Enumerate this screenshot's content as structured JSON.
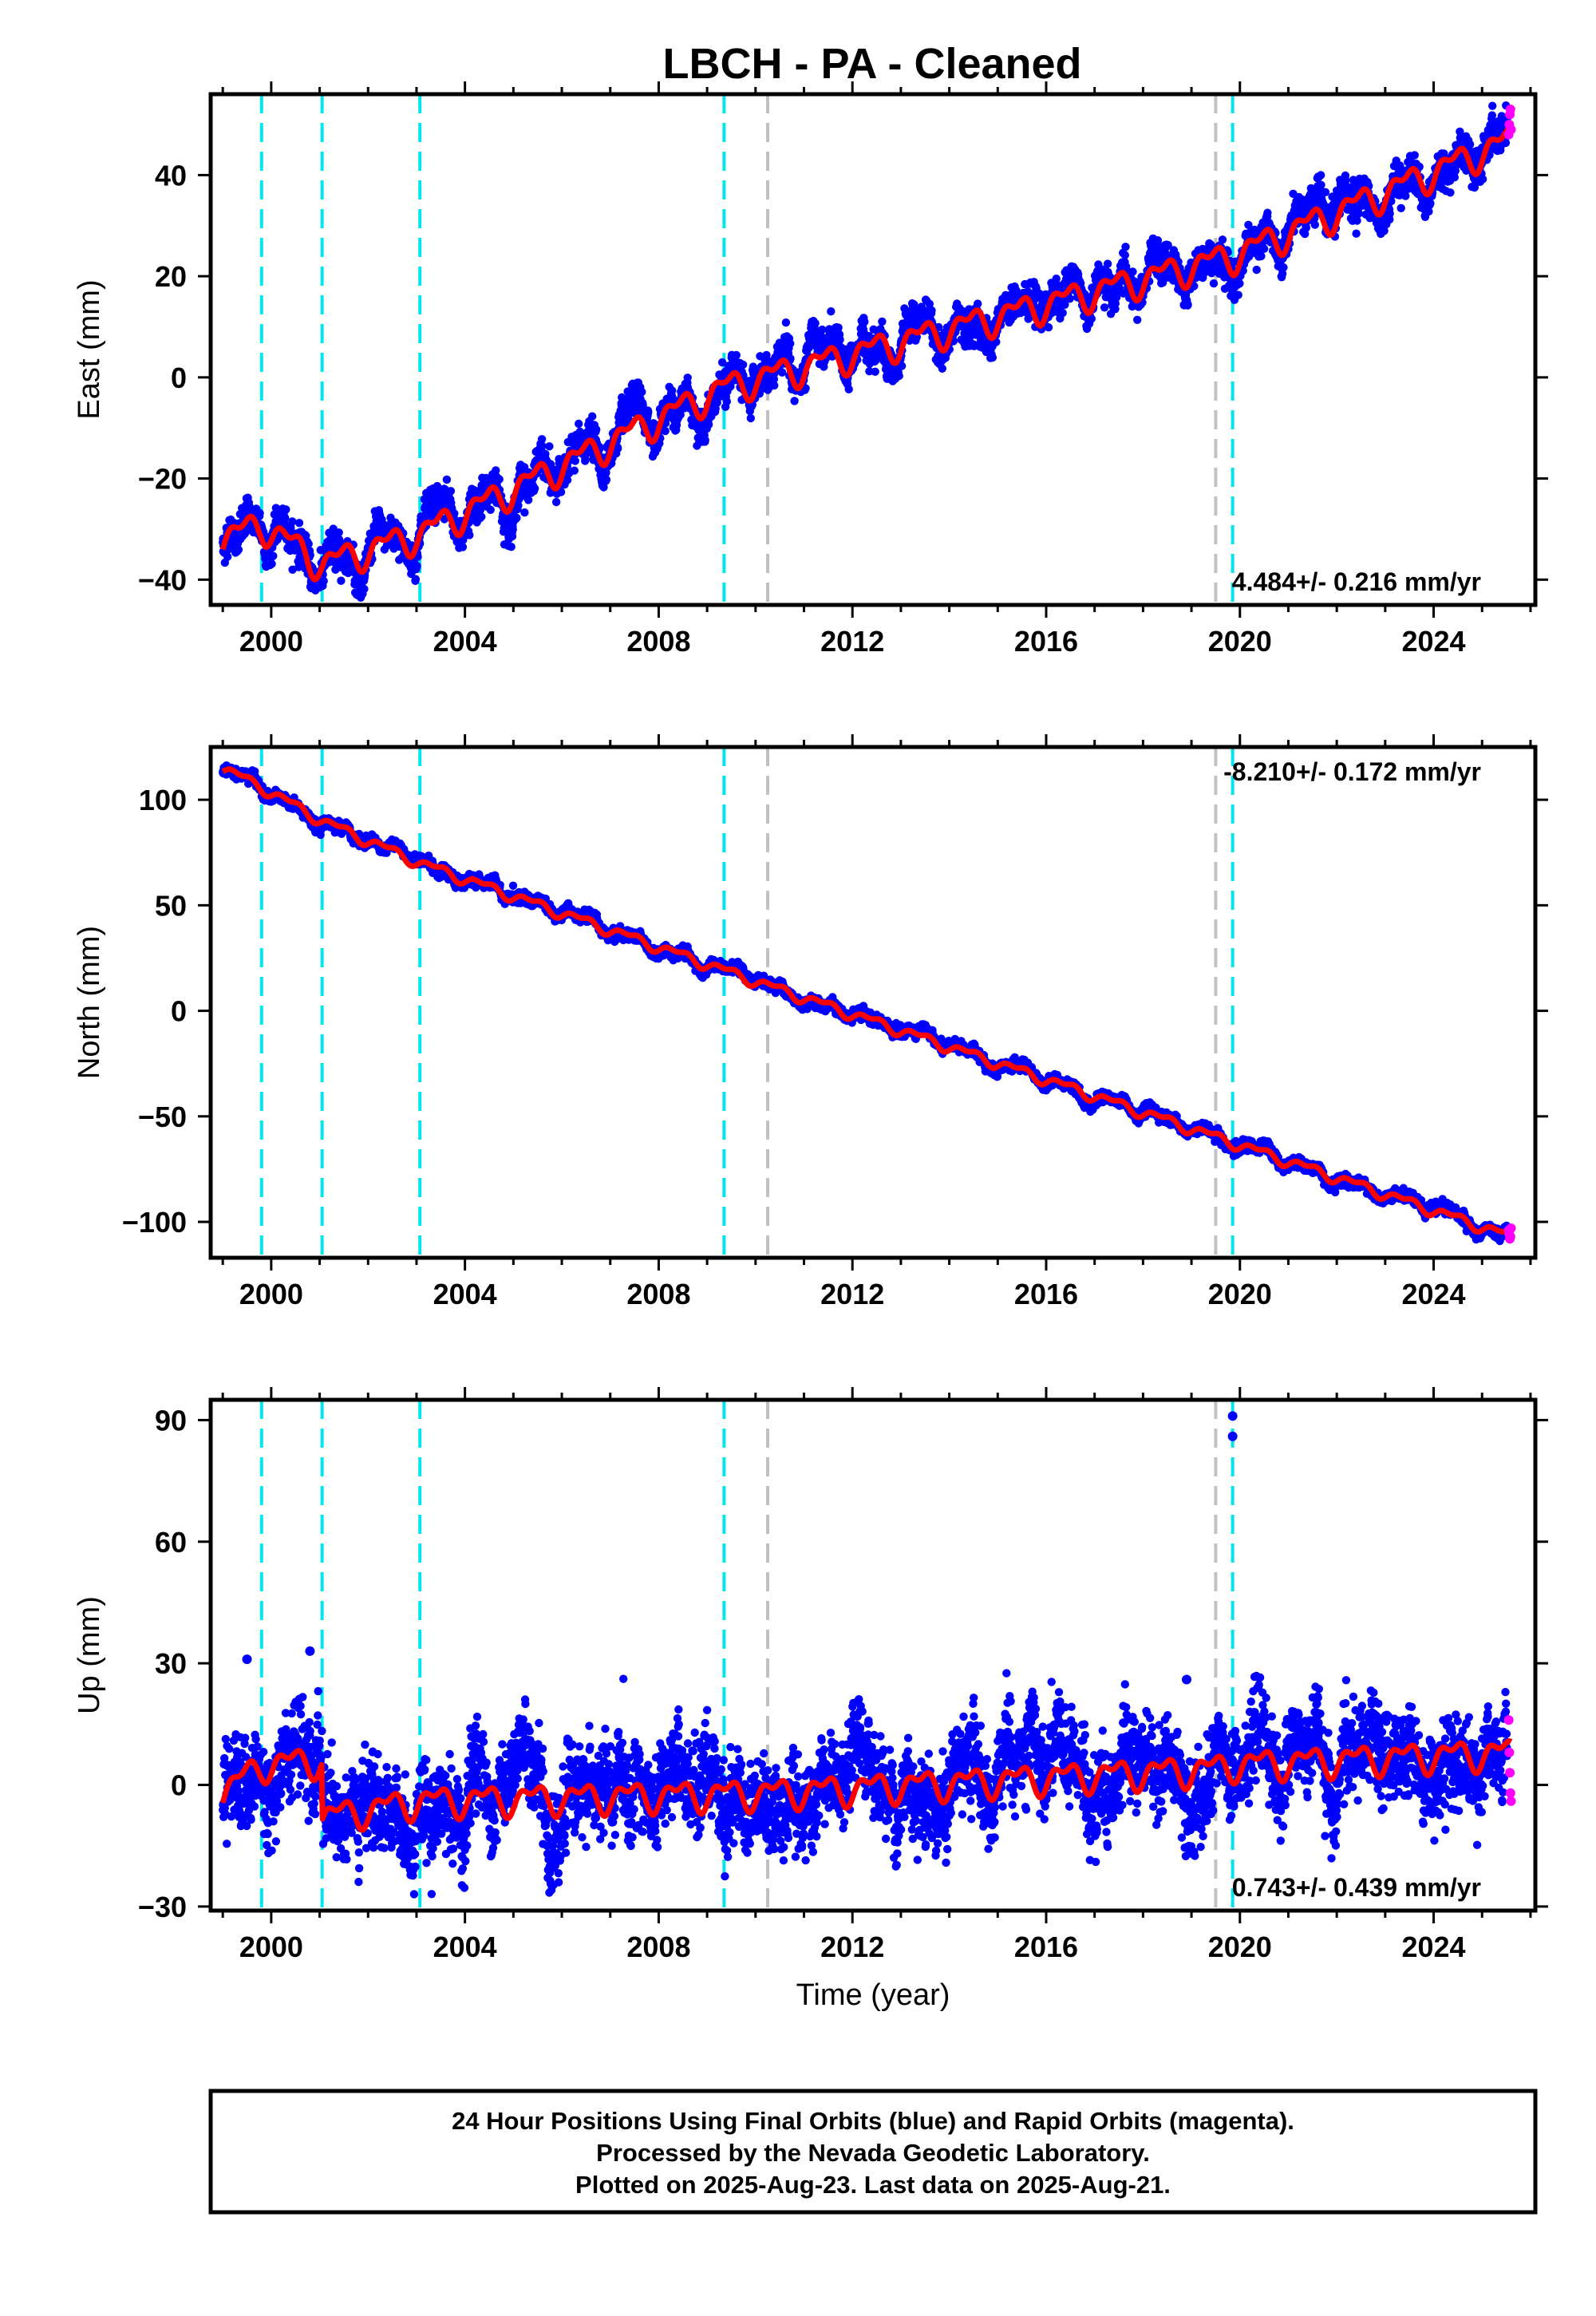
{
  "figure": {
    "title": "LBCH  - PA - Cleaned",
    "footer": [
      "24 Hour Positions Using Final Orbits (blue) and Rapid Orbits (magenta).",
      "Processed by the Nevada Geodetic Laboratory.",
      "Plotted on 2025-Aug-23. Last data on 2025-Aug-21."
    ],
    "colors": {
      "final_orbits": "#0000ff",
      "rapid_orbits": "#ff00ff",
      "model_fit": "#ff0000",
      "equipment_change": "#00e5ee",
      "other_event": "#c0c0c0"
    }
  },
  "chart_data": [
    {
      "type": "scatter",
      "panel": "east",
      "ylabel": "East (mm)",
      "xlabel": "",
      "xlim": [
        1998.75,
        2026.1
      ],
      "ylim": [
        -45,
        56
      ],
      "x_ticks": [
        2000,
        2004,
        2008,
        2012,
        2016,
        2020,
        2024
      ],
      "y_ticks": [
        -40,
        -20,
        0,
        20,
        40
      ],
      "grid": false,
      "rate_text": "4.484+/- 0.216 mm/yr",
      "rate_position": "bottom-right",
      "cyan_event_lines": [
        1999.8,
        2001.05,
        2003.07,
        2009.35
      ],
      "gray_event_lines": [
        2010.25,
        2019.5
      ],
      "cyan_event_lines_late": [
        2019.85
      ],
      "trend": {
        "x": [
          1999.0,
          1999.8,
          2001.05,
          2003.07,
          2009.35,
          2019.85,
          2025.6
        ],
        "y": [
          -32,
          -29,
          -37,
          -31,
          -2,
          24,
          47
        ]
      },
      "annual_amplitude_mm": 2.5,
      "point_scatter_mm": 1.6,
      "rapid_orbit_values": [
        48,
        50,
        52,
        53,
        49
      ]
    },
    {
      "type": "scatter",
      "panel": "north",
      "ylabel": "North (mm)",
      "xlabel": "",
      "xlim": [
        1998.75,
        2026.1
      ],
      "ylim": [
        -117,
        125
      ],
      "x_ticks": [
        2000,
        2004,
        2008,
        2012,
        2016,
        2020,
        2024
      ],
      "y_ticks": [
        -100,
        -50,
        0,
        50,
        100
      ],
      "grid": false,
      "rate_text": "-8.210+/- 0.172 mm/yr",
      "rate_position": "top-right",
      "cyan_event_lines": [
        1999.8,
        2001.05,
        2003.07,
        2009.35
      ],
      "gray_event_lines": [
        2010.25,
        2019.5
      ],
      "cyan_event_lines_late": [
        2019.85
      ],
      "trend": {
        "x": [
          1999.0,
          1999.8,
          2001.05,
          2003.07,
          2010.25,
          2025.6
        ],
        "y": [
          115,
          106,
          90,
          70,
          12,
          -107
        ]
      },
      "annual_amplitude_mm": 2.0,
      "point_scatter_mm": 1.2,
      "rapid_orbit_values": [
        -104,
        -106,
        -108,
        -107,
        -103
      ]
    },
    {
      "type": "scatter",
      "panel": "up",
      "ylabel": "Up (mm)",
      "xlabel": "Time (year)",
      "xlim": [
        1998.75,
        2026.1
      ],
      "ylim": [
        -31,
        95
      ],
      "x_ticks": [
        2000,
        2004,
        2008,
        2012,
        2016,
        2020,
        2024
      ],
      "y_ticks": [
        -30,
        0,
        30,
        60,
        90
      ],
      "grid": false,
      "rate_text": "0.743+/- 0.439 mm/yr",
      "rate_position": "bottom-right",
      "cyan_event_lines": [
        1999.8,
        2001.05,
        2003.07,
        2009.35
      ],
      "gray_event_lines": [
        2010.25,
        2019.5
      ],
      "cyan_event_lines_late": [
        2019.85
      ],
      "trend": {
        "x": [
          1999.0,
          1999.8,
          2001.05,
          2001.06,
          2003.07,
          2010.25,
          2019.5,
          2019.85,
          2025.6
        ],
        "y": [
          -2,
          5,
          6,
          -8,
          -4,
          -2,
          4,
          5,
          8
        ]
      },
      "annual_amplitude_mm": 3.0,
      "point_scatter_mm": 5.0,
      "outliers": [
        {
          "x": 2019.85,
          "y": 91
        },
        {
          "x": 2019.85,
          "y": 86
        },
        {
          "x": 2000.8,
          "y": 33
        },
        {
          "x": 1999.5,
          "y": 31
        },
        {
          "x": 2018.9,
          "y": 26
        }
      ],
      "rapid_orbit_values": [
        16,
        8,
        3,
        -2,
        -4
      ]
    }
  ]
}
